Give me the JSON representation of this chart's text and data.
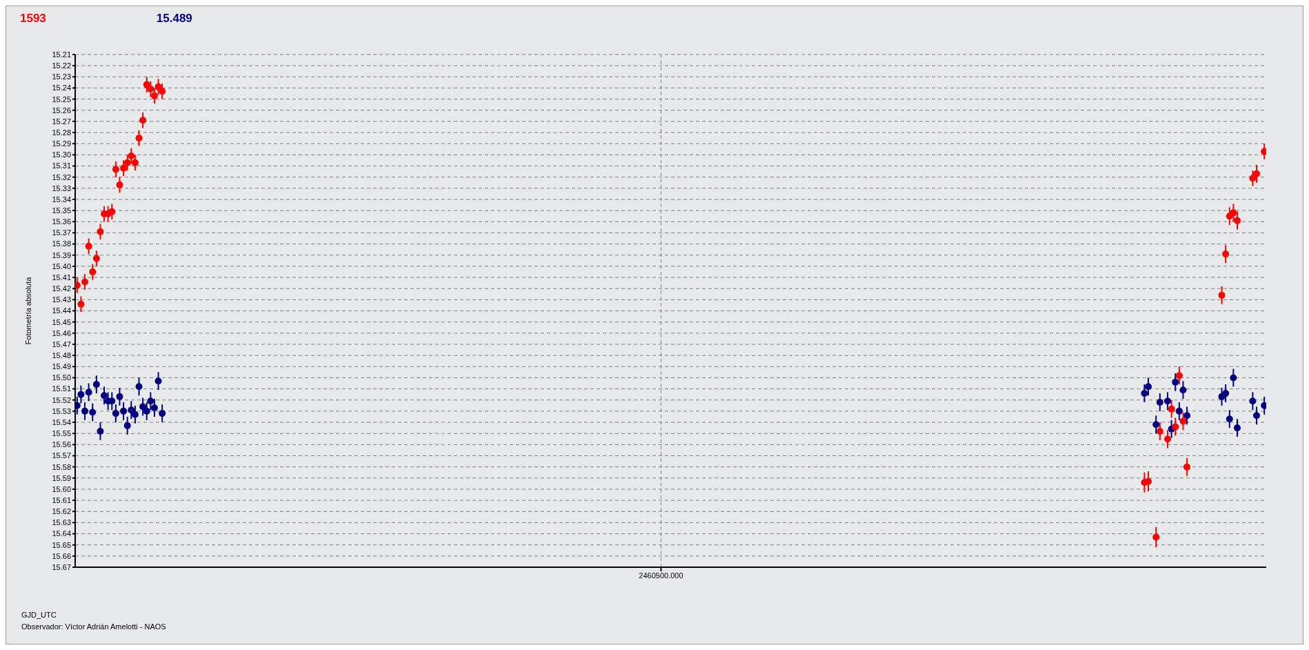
{
  "chart_data": {
    "type": "scatter",
    "ylabel": "Fotometría absoluta",
    "annotations": [
      "GJD_UTC",
      "Observador: Víctor Adrián Amelotti - NAOS"
    ],
    "categories": [
      null,
      null,
      null,
      null,
      null,
      null,
      null,
      null,
      null,
      null,
      null,
      null,
      null,
      null,
      null,
      null,
      null,
      null,
      null,
      null,
      null,
      null,
      null,
      null,
      null,
      null,
      null,
      null,
      null,
      null,
      null,
      null,
      null,
      null,
      null,
      null,
      null,
      null,
      null,
      null,
      null,
      null,
      null,
      null,
      null,
      null,
      null,
      null,
      null,
      null,
      null,
      null,
      null,
      null,
      null,
      null,
      null,
      null,
      null,
      null,
      null,
      null,
      null,
      null,
      null,
      null,
      null,
      null,
      null,
      null,
      null,
      null,
      null,
      null,
      null,
      null,
      null,
      null,
      null,
      null,
      null,
      null,
      null,
      null,
      null,
      null,
      null,
      null,
      null,
      null,
      null,
      null,
      null,
      null,
      null,
      null,
      null,
      null,
      null,
      null,
      null,
      null,
      null,
      null,
      null,
      null,
      null,
      null,
      null,
      null,
      null,
      null,
      null,
      null,
      null,
      null,
      null,
      null,
      null,
      null,
      null,
      null,
      null,
      null,
      null,
      null,
      null,
      null,
      null,
      null,
      null,
      null,
      null,
      null,
      null,
      null,
      null,
      null,
      null,
      null,
      null,
      null,
      null,
      null,
      null,
      null,
      null,
      null,
      null,
      null,
      null,
      "2460500.000",
      null,
      null,
      null,
      null,
      null,
      null,
      null,
      null,
      null,
      null,
      null,
      null,
      null,
      null,
      null,
      null,
      null,
      null,
      null,
      null,
      null,
      null,
      null,
      null,
      null,
      null,
      null,
      null,
      null,
      null,
      null,
      null,
      null,
      null,
      null,
      null,
      null,
      null,
      null,
      null,
      null,
      null,
      null,
      null,
      null,
      null,
      null,
      null,
      null,
      null,
      null,
      null,
      null,
      null,
      null,
      null,
      null,
      null,
      null,
      null,
      null,
      null,
      null,
      null,
      null,
      null,
      null,
      null,
      null,
      null,
      null,
      null,
      null,
      null,
      null,
      null,
      null,
      null,
      null,
      null,
      null,
      null,
      null,
      null,
      null,
      null,
      null,
      null,
      null,
      null,
      null,
      null,
      null,
      null,
      null,
      null,
      null,
      null,
      null,
      null,
      null,
      null,
      null,
      null,
      null,
      null,
      null,
      null,
      null,
      null,
      null,
      null,
      null,
      null,
      null,
      null,
      null,
      null,
      null,
      null,
      null,
      null,
      null,
      null,
      null,
      null,
      null,
      null,
      null,
      null,
      null,
      null,
      null,
      null,
      null,
      null,
      null,
      null,
      null,
      null,
      null,
      null,
      null,
      null,
      null,
      null,
      null,
      null,
      null,
      null,
      null,
      null,
      null,
      null,
      null,
      null
    ],
    "ylim": [
      15.67,
      15.21
    ],
    "yticks": [
      15.21,
      15.22,
      15.23,
      15.24,
      15.25,
      15.26,
      15.27,
      15.28,
      15.29,
      {
        "value": 15.3,
        "label": "15.30"
      },
      15.31,
      15.32,
      15.33,
      15.34,
      15.35,
      15.36,
      15.37,
      15.38,
      15.39,
      {
        "value": 15.4,
        "label": "15.40"
      },
      15.41,
      15.42,
      15.43,
      15.44,
      15.45,
      15.46,
      15.47,
      15.48,
      15.49,
      {
        "value": 15.5,
        "label": "15.50"
      },
      15.51,
      15.52,
      15.53,
      15.54,
      15.55,
      15.56,
      15.57,
      15.58,
      15.59,
      {
        "value": 15.6,
        "label": "15.60"
      },
      15.61,
      15.62,
      15.63,
      15.64,
      15.65,
      15.66,
      15.67
    ],
    "grid": true,
    "marker": "circle",
    "series": [
      {
        "name": "1593",
        "color": "#ff0000",
        "values": [
          15.417,
          15.434,
          15.414,
          15.382,
          15.405,
          15.393,
          15.369,
          15.353,
          15.353,
          15.351,
          15.313,
          15.327,
          15.312,
          15.307,
          15.301,
          15.307,
          15.285,
          15.269,
          15.237,
          15.241,
          15.247,
          15.239,
          15.243,
          null,
          null,
          null,
          null,
          null,
          null,
          null,
          null,
          null,
          null,
          null,
          null,
          null,
          null,
          null,
          null,
          null,
          null,
          null,
          null,
          null,
          null,
          null,
          null,
          null,
          null,
          null,
          null,
          null,
          null,
          null,
          null,
          null,
          null,
          null,
          null,
          null,
          null,
          null,
          null,
          null,
          null,
          null,
          null,
          null,
          null,
          null,
          null,
          null,
          null,
          null,
          null,
          null,
          null,
          null,
          null,
          null,
          null,
          null,
          null,
          null,
          null,
          null,
          null,
          null,
          null,
          null,
          null,
          null,
          null,
          null,
          null,
          null,
          null,
          null,
          null,
          null,
          null,
          null,
          null,
          null,
          null,
          null,
          null,
          null,
          null,
          null,
          null,
          null,
          null,
          null,
          null,
          null,
          null,
          null,
          null,
          null,
          null,
          null,
          null,
          null,
          null,
          null,
          null,
          null,
          null,
          null,
          null,
          null,
          null,
          null,
          null,
          null,
          null,
          null,
          null,
          null,
          null,
          null,
          null,
          null,
          null,
          null,
          null,
          null,
          null,
          null,
          null,
          null,
          null,
          null,
          null,
          null,
          null,
          null,
          null,
          null,
          null,
          null,
          null,
          null,
          null,
          null,
          null,
          null,
          null,
          null,
          null,
          null,
          null,
          null,
          null,
          null,
          null,
          null,
          null,
          null,
          null,
          null,
          null,
          null,
          null,
          null,
          null,
          null,
          null,
          null,
          null,
          null,
          null,
          null,
          null,
          null,
          null,
          null,
          null,
          null,
          null,
          null,
          null,
          null,
          null,
          null,
          null,
          null,
          null,
          null,
          null,
          null,
          null,
          null,
          null,
          null,
          null,
          null,
          null,
          null,
          null,
          null,
          null,
          null,
          null,
          null,
          null,
          null,
          null,
          null,
          null,
          null,
          null,
          null,
          null,
          null,
          null,
          null,
          null,
          null,
          null,
          null,
          null,
          null,
          null,
          null,
          null,
          null,
          null,
          null,
          null,
          null,
          null,
          null,
          null,
          null,
          null,
          null,
          null,
          null,
          null,
          null,
          null,
          null,
          null,
          null,
          null,
          null,
          null,
          null,
          null,
          null,
          null,
          null,
          null,
          null,
          15.594,
          15.593,
          null,
          15.643,
          15.548,
          null,
          15.555,
          15.528,
          15.544,
          15.498,
          15.539,
          15.58,
          null,
          null,
          null,
          null,
          null,
          null,
          null,
          null,
          15.426,
          15.389,
          15.355,
          15.352,
          15.359,
          null,
          null,
          null,
          15.321,
          15.317,
          null,
          15.297
        ],
        "errors": [
          0.007,
          0.007,
          0.007,
          0.007,
          0.007,
          0.007,
          0.007,
          0.007,
          0.007,
          0.007,
          0.007,
          0.007,
          0.007,
          0.007,
          0.007,
          0.007,
          0.007,
          0.007,
          0.007,
          0.007,
          0.007,
          0.007,
          0.007,
          null,
          null,
          null,
          null,
          null,
          null,
          null,
          null,
          null,
          null,
          null,
          null,
          null,
          null,
          null,
          null,
          null,
          null,
          null,
          null,
          null,
          null,
          null,
          null,
          null,
          null,
          null,
          null,
          null,
          null,
          null,
          null,
          null,
          null,
          null,
          null,
          null,
          null,
          null,
          null,
          null,
          null,
          null,
          null,
          null,
          null,
          null,
          null,
          null,
          null,
          null,
          null,
          null,
          null,
          null,
          null,
          null,
          null,
          null,
          null,
          null,
          null,
          null,
          null,
          null,
          null,
          null,
          null,
          null,
          null,
          null,
          null,
          null,
          null,
          null,
          null,
          null,
          null,
          null,
          null,
          null,
          null,
          null,
          null,
          null,
          null,
          null,
          null,
          null,
          null,
          null,
          null,
          null,
          null,
          null,
          null,
          null,
          null,
          null,
          null,
          null,
          null,
          null,
          null,
          null,
          null,
          null,
          null,
          null,
          null,
          null,
          null,
          null,
          null,
          null,
          null,
          null,
          null,
          null,
          null,
          null,
          null,
          null,
          null,
          null,
          null,
          null,
          null,
          null,
          null,
          null,
          null,
          null,
          null,
          null,
          null,
          null,
          null,
          null,
          null,
          null,
          null,
          null,
          null,
          null,
          null,
          null,
          null,
          null,
          null,
          null,
          null,
          null,
          null,
          null,
          null,
          null,
          null,
          null,
          null,
          null,
          null,
          null,
          null,
          null,
          null,
          null,
          null,
          null,
          null,
          null,
          null,
          null,
          null,
          null,
          null,
          null,
          null,
          null,
          null,
          null,
          null,
          null,
          null,
          null,
          null,
          null,
          null,
          null,
          null,
          null,
          null,
          null,
          null,
          null,
          null,
          null,
          null,
          null,
          null,
          null,
          null,
          null,
          null,
          null,
          null,
          null,
          null,
          null,
          null,
          null,
          null,
          null,
          null,
          null,
          null,
          null,
          null,
          null,
          null,
          null,
          null,
          null,
          null,
          null,
          null,
          null,
          null,
          null,
          null,
          null,
          null,
          null,
          null,
          null,
          null,
          null,
          null,
          null,
          null,
          null,
          null,
          null,
          null,
          null,
          null,
          null,
          null,
          null,
          null,
          null,
          null,
          null,
          0.009,
          0.009,
          null,
          0.009,
          0.008,
          null,
          0.008,
          0.008,
          0.008,
          0.008,
          0.008,
          0.008,
          null,
          null,
          null,
          null,
          null,
          null,
          null,
          null,
          0.008,
          0.008,
          0.008,
          0.008,
          0.008,
          null,
          null,
          null,
          0.007,
          0.008,
          null,
          0.007
        ]
      },
      {
        "name": "15.489",
        "color": "#000080",
        "values": [
          15.525,
          15.515,
          15.53,
          15.513,
          15.531,
          15.506,
          15.548,
          15.516,
          15.521,
          15.521,
          15.532,
          15.517,
          15.53,
          15.543,
          15.529,
          15.533,
          15.508,
          15.526,
          15.53,
          15.521,
          15.527,
          15.503,
          15.532,
          null,
          null,
          null,
          null,
          null,
          null,
          null,
          null,
          null,
          null,
          null,
          null,
          null,
          null,
          null,
          null,
          null,
          null,
          null,
          null,
          null,
          null,
          null,
          null,
          null,
          null,
          null,
          null,
          null,
          null,
          null,
          null,
          null,
          null,
          null,
          null,
          null,
          null,
          null,
          null,
          null,
          null,
          null,
          null,
          null,
          null,
          null,
          null,
          null,
          null,
          null,
          null,
          null,
          null,
          null,
          null,
          null,
          null,
          null,
          null,
          null,
          null,
          null,
          null,
          null,
          null,
          null,
          null,
          null,
          null,
          null,
          null,
          null,
          null,
          null,
          null,
          null,
          null,
          null,
          null,
          null,
          null,
          null,
          null,
          null,
          null,
          null,
          null,
          null,
          null,
          null,
          null,
          null,
          null,
          null,
          null,
          null,
          null,
          null,
          null,
          null,
          null,
          null,
          null,
          null,
          null,
          null,
          null,
          null,
          null,
          null,
          null,
          null,
          null,
          null,
          null,
          null,
          null,
          null,
          null,
          null,
          null,
          null,
          null,
          null,
          null,
          null,
          null,
          null,
          null,
          null,
          null,
          null,
          null,
          null,
          null,
          null,
          null,
          null,
          null,
          null,
          null,
          null,
          null,
          null,
          null,
          null,
          null,
          null,
          null,
          null,
          null,
          null,
          null,
          null,
          null,
          null,
          null,
          null,
          null,
          null,
          null,
          null,
          null,
          null,
          null,
          null,
          null,
          null,
          null,
          null,
          null,
          null,
          null,
          null,
          null,
          null,
          null,
          null,
          null,
          null,
          null,
          null,
          null,
          null,
          null,
          null,
          null,
          null,
          null,
          null,
          null,
          null,
          null,
          null,
          null,
          null,
          null,
          null,
          null,
          null,
          null,
          null,
          null,
          null,
          null,
          null,
          null,
          null,
          null,
          null,
          null,
          null,
          null,
          null,
          null,
          null,
          null,
          null,
          null,
          null,
          null,
          null,
          null,
          null,
          null,
          null,
          null,
          null,
          null,
          null,
          null,
          null,
          null,
          null,
          null,
          null,
          null,
          null,
          null,
          null,
          null,
          null,
          null,
          null,
          null,
          null,
          null,
          null,
          null,
          null,
          null,
          null,
          15.514,
          15.508,
          null,
          15.542,
          15.522,
          null,
          15.521,
          15.546,
          15.504,
          15.53,
          15.511,
          15.534,
          null,
          null,
          null,
          null,
          null,
          null,
          null,
          null,
          15.517,
          15.514,
          15.537,
          15.5,
          15.545,
          null,
          null,
          null,
          15.521,
          15.534,
          null,
          15.525
        ],
        "errors": [
          0.008,
          0.008,
          0.008,
          0.008,
          0.008,
          0.008,
          0.008,
          0.008,
          0.008,
          0.008,
          0.008,
          0.008,
          0.008,
          0.008,
          0.008,
          0.008,
          0.008,
          0.008,
          0.008,
          0.008,
          0.008,
          0.008,
          0.008,
          null,
          null,
          null,
          null,
          null,
          null,
          null,
          null,
          null,
          null,
          null,
          null,
          null,
          null,
          null,
          null,
          null,
          null,
          null,
          null,
          null,
          null,
          null,
          null,
          null,
          null,
          null,
          null,
          null,
          null,
          null,
          null,
          null,
          null,
          null,
          null,
          null,
          null,
          null,
          null,
          null,
          null,
          null,
          null,
          null,
          null,
          null,
          null,
          null,
          null,
          null,
          null,
          null,
          null,
          null,
          null,
          null,
          null,
          null,
          null,
          null,
          null,
          null,
          null,
          null,
          null,
          null,
          null,
          null,
          null,
          null,
          null,
          null,
          null,
          null,
          null,
          null,
          null,
          null,
          null,
          null,
          null,
          null,
          null,
          null,
          null,
          null,
          null,
          null,
          null,
          null,
          null,
          null,
          null,
          null,
          null,
          null,
          null,
          null,
          null,
          null,
          null,
          null,
          null,
          null,
          null,
          null,
          null,
          null,
          null,
          null,
          null,
          null,
          null,
          null,
          null,
          null,
          null,
          null,
          null,
          null,
          null,
          null,
          null,
          null,
          null,
          null,
          null,
          null,
          null,
          null,
          null,
          null,
          null,
          null,
          null,
          null,
          null,
          null,
          null,
          null,
          null,
          null,
          null,
          null,
          null,
          null,
          null,
          null,
          null,
          null,
          null,
          null,
          null,
          null,
          null,
          null,
          null,
          null,
          null,
          null,
          null,
          null,
          null,
          null,
          null,
          null,
          null,
          null,
          null,
          null,
          null,
          null,
          null,
          null,
          null,
          null,
          null,
          null,
          null,
          null,
          null,
          null,
          null,
          null,
          null,
          null,
          null,
          null,
          null,
          null,
          null,
          null,
          null,
          null,
          null,
          null,
          null,
          null,
          null,
          null,
          null,
          null,
          null,
          null,
          null,
          null,
          null,
          null,
          null,
          null,
          null,
          null,
          null,
          null,
          null,
          null,
          null,
          null,
          null,
          null,
          null,
          null,
          null,
          null,
          null,
          null,
          null,
          null,
          null,
          null,
          null,
          null,
          null,
          null,
          null,
          null,
          null,
          null,
          null,
          null,
          null,
          null,
          null,
          null,
          null,
          null,
          null,
          null,
          null,
          null,
          null,
          null,
          0.008,
          0.008,
          null,
          0.008,
          0.008,
          null,
          0.008,
          0.008,
          0.008,
          0.008,
          0.008,
          0.008,
          null,
          null,
          null,
          null,
          null,
          null,
          null,
          null,
          0.008,
          0.008,
          0.008,
          0.008,
          0.008,
          null,
          null,
          null,
          0.008,
          0.008,
          null,
          0.008
        ]
      }
    ]
  }
}
